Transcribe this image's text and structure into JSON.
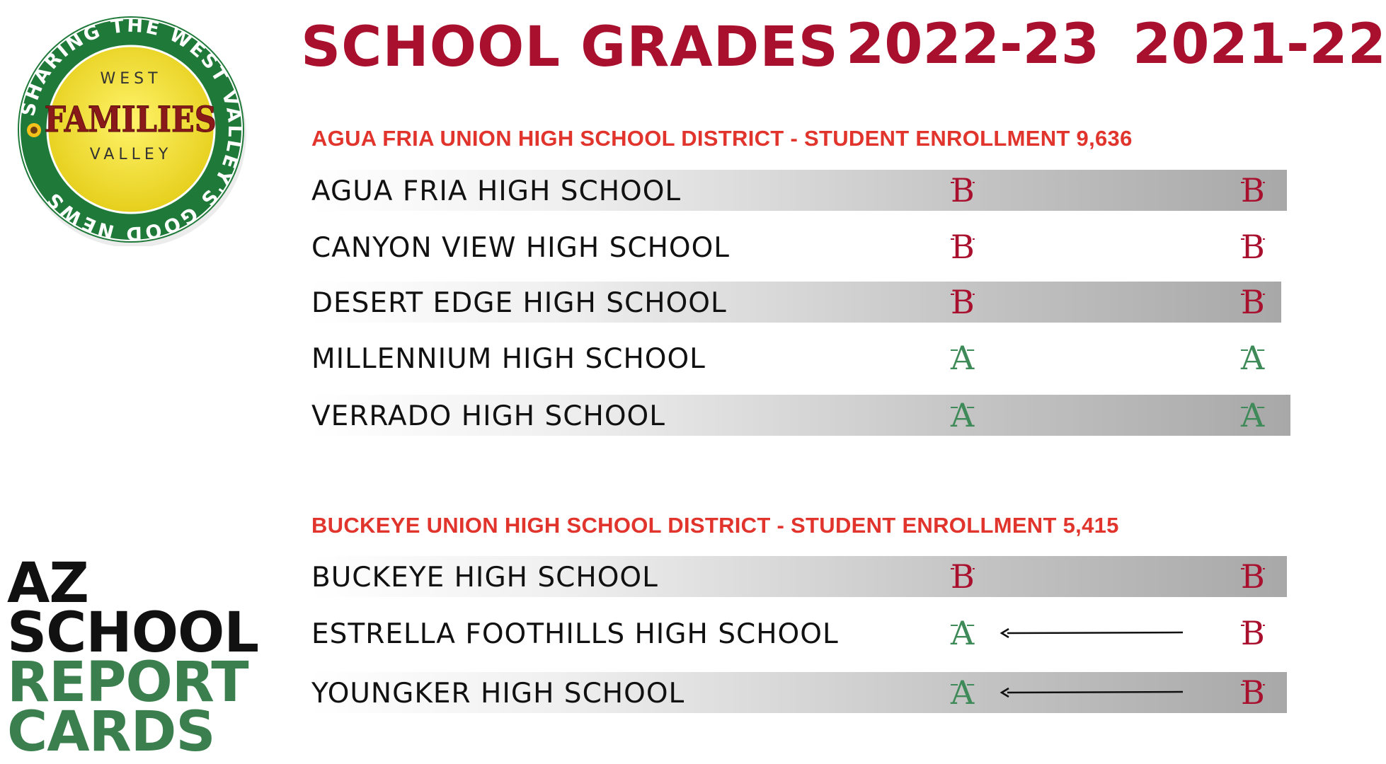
{
  "header": {
    "title": "SCHOOL GRADES",
    "year_current": "2022-23",
    "year_previous": "2021-22"
  },
  "logo": {
    "ring_text": "SHARING THE WEST VALLEY'S GOOD NEWS",
    "line_top": "WEST",
    "line_main": "FAMILIES",
    "line_bottom": "VALLEY",
    "icon": "sunflower-icon"
  },
  "districts": [
    {
      "heading": "AGUA FRIA UNION HIGH SCHOOL DISTRICT - STUDENT ENROLLMENT 9,636",
      "schools": [
        {
          "name": "AGUA FRIA HIGH SCHOOL",
          "grade_2022_23": "B",
          "grade_2021_22": "B"
        },
        {
          "name": "CANYON VIEW HIGH SCHOOL",
          "grade_2022_23": "B",
          "grade_2021_22": "B"
        },
        {
          "name": "DESERT EDGE HIGH SCHOOL",
          "grade_2022_23": "B",
          "grade_2021_22": "B"
        },
        {
          "name": "MILLENNIUM HIGH SCHOOL",
          "grade_2022_23": "A",
          "grade_2021_22": "A"
        },
        {
          "name": "VERRADO HIGH SCHOOL",
          "grade_2022_23": "A",
          "grade_2021_22": "A"
        }
      ]
    },
    {
      "heading": "BUCKEYE UNION HIGH SCHOOL DISTRICT - STUDENT ENROLLMENT 5,415",
      "schools": [
        {
          "name": "BUCKEYE HIGH SCHOOL",
          "grade_2022_23": "B",
          "grade_2021_22": "B"
        },
        {
          "name": "ESTRELLA FOOTHILLS HIGH SCHOOL",
          "grade_2022_23": "A",
          "grade_2021_22": "B"
        },
        {
          "name": "YOUNGKER HIGH SCHOOL",
          "grade_2022_23": "A",
          "grade_2021_22": "B"
        }
      ]
    }
  ],
  "side_title": {
    "line1": "AZ",
    "line2": "SCHOOL",
    "line3": "REPORT",
    "line4": "CARDS"
  },
  "colors": {
    "title_red": "#a8102e",
    "district_red": "#e0342c",
    "grade_a_green": "#3e8a58",
    "grade_b_red": "#a8102e",
    "logo_green": "#1f7a3a",
    "logo_yellow": "#f3e23a"
  }
}
